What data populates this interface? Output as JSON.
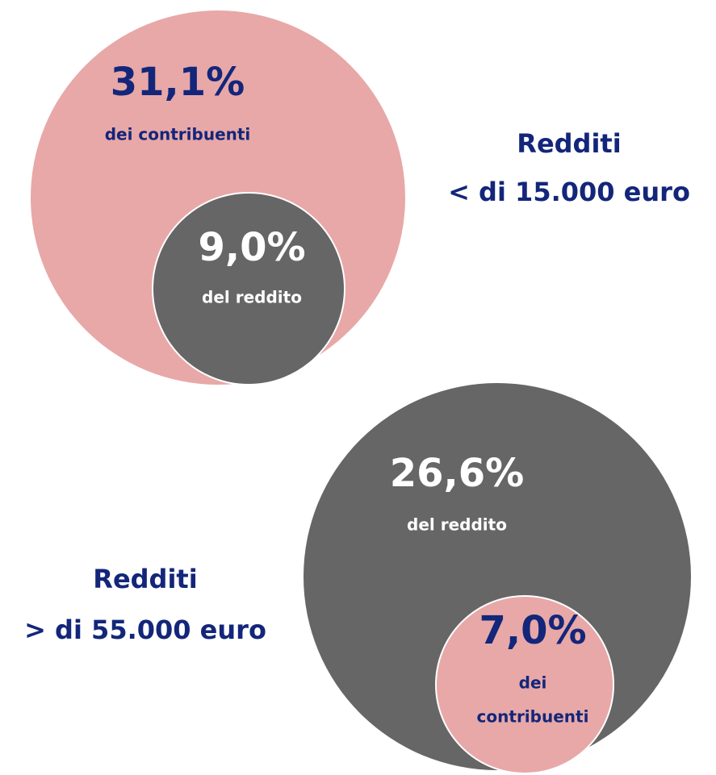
{
  "groups": [
    {
      "label": [
        "Redditi",
        "< di 15.000 euro"
      ],
      "outer": {
        "value": "31,1%",
        "caption": [
          "dei contribuenti"
        ]
      },
      "inner": {
        "value": "9,0%",
        "caption": [
          "del reddito"
        ]
      }
    },
    {
      "label": [
        "Redditi",
        "> di 55.000 euro"
      ],
      "outer": {
        "value": "26,6%",
        "caption": [
          "del reddito"
        ]
      },
      "inner": {
        "value": "7,0%",
        "caption": [
          "dei",
          "contribuenti"
        ]
      }
    }
  ]
}
